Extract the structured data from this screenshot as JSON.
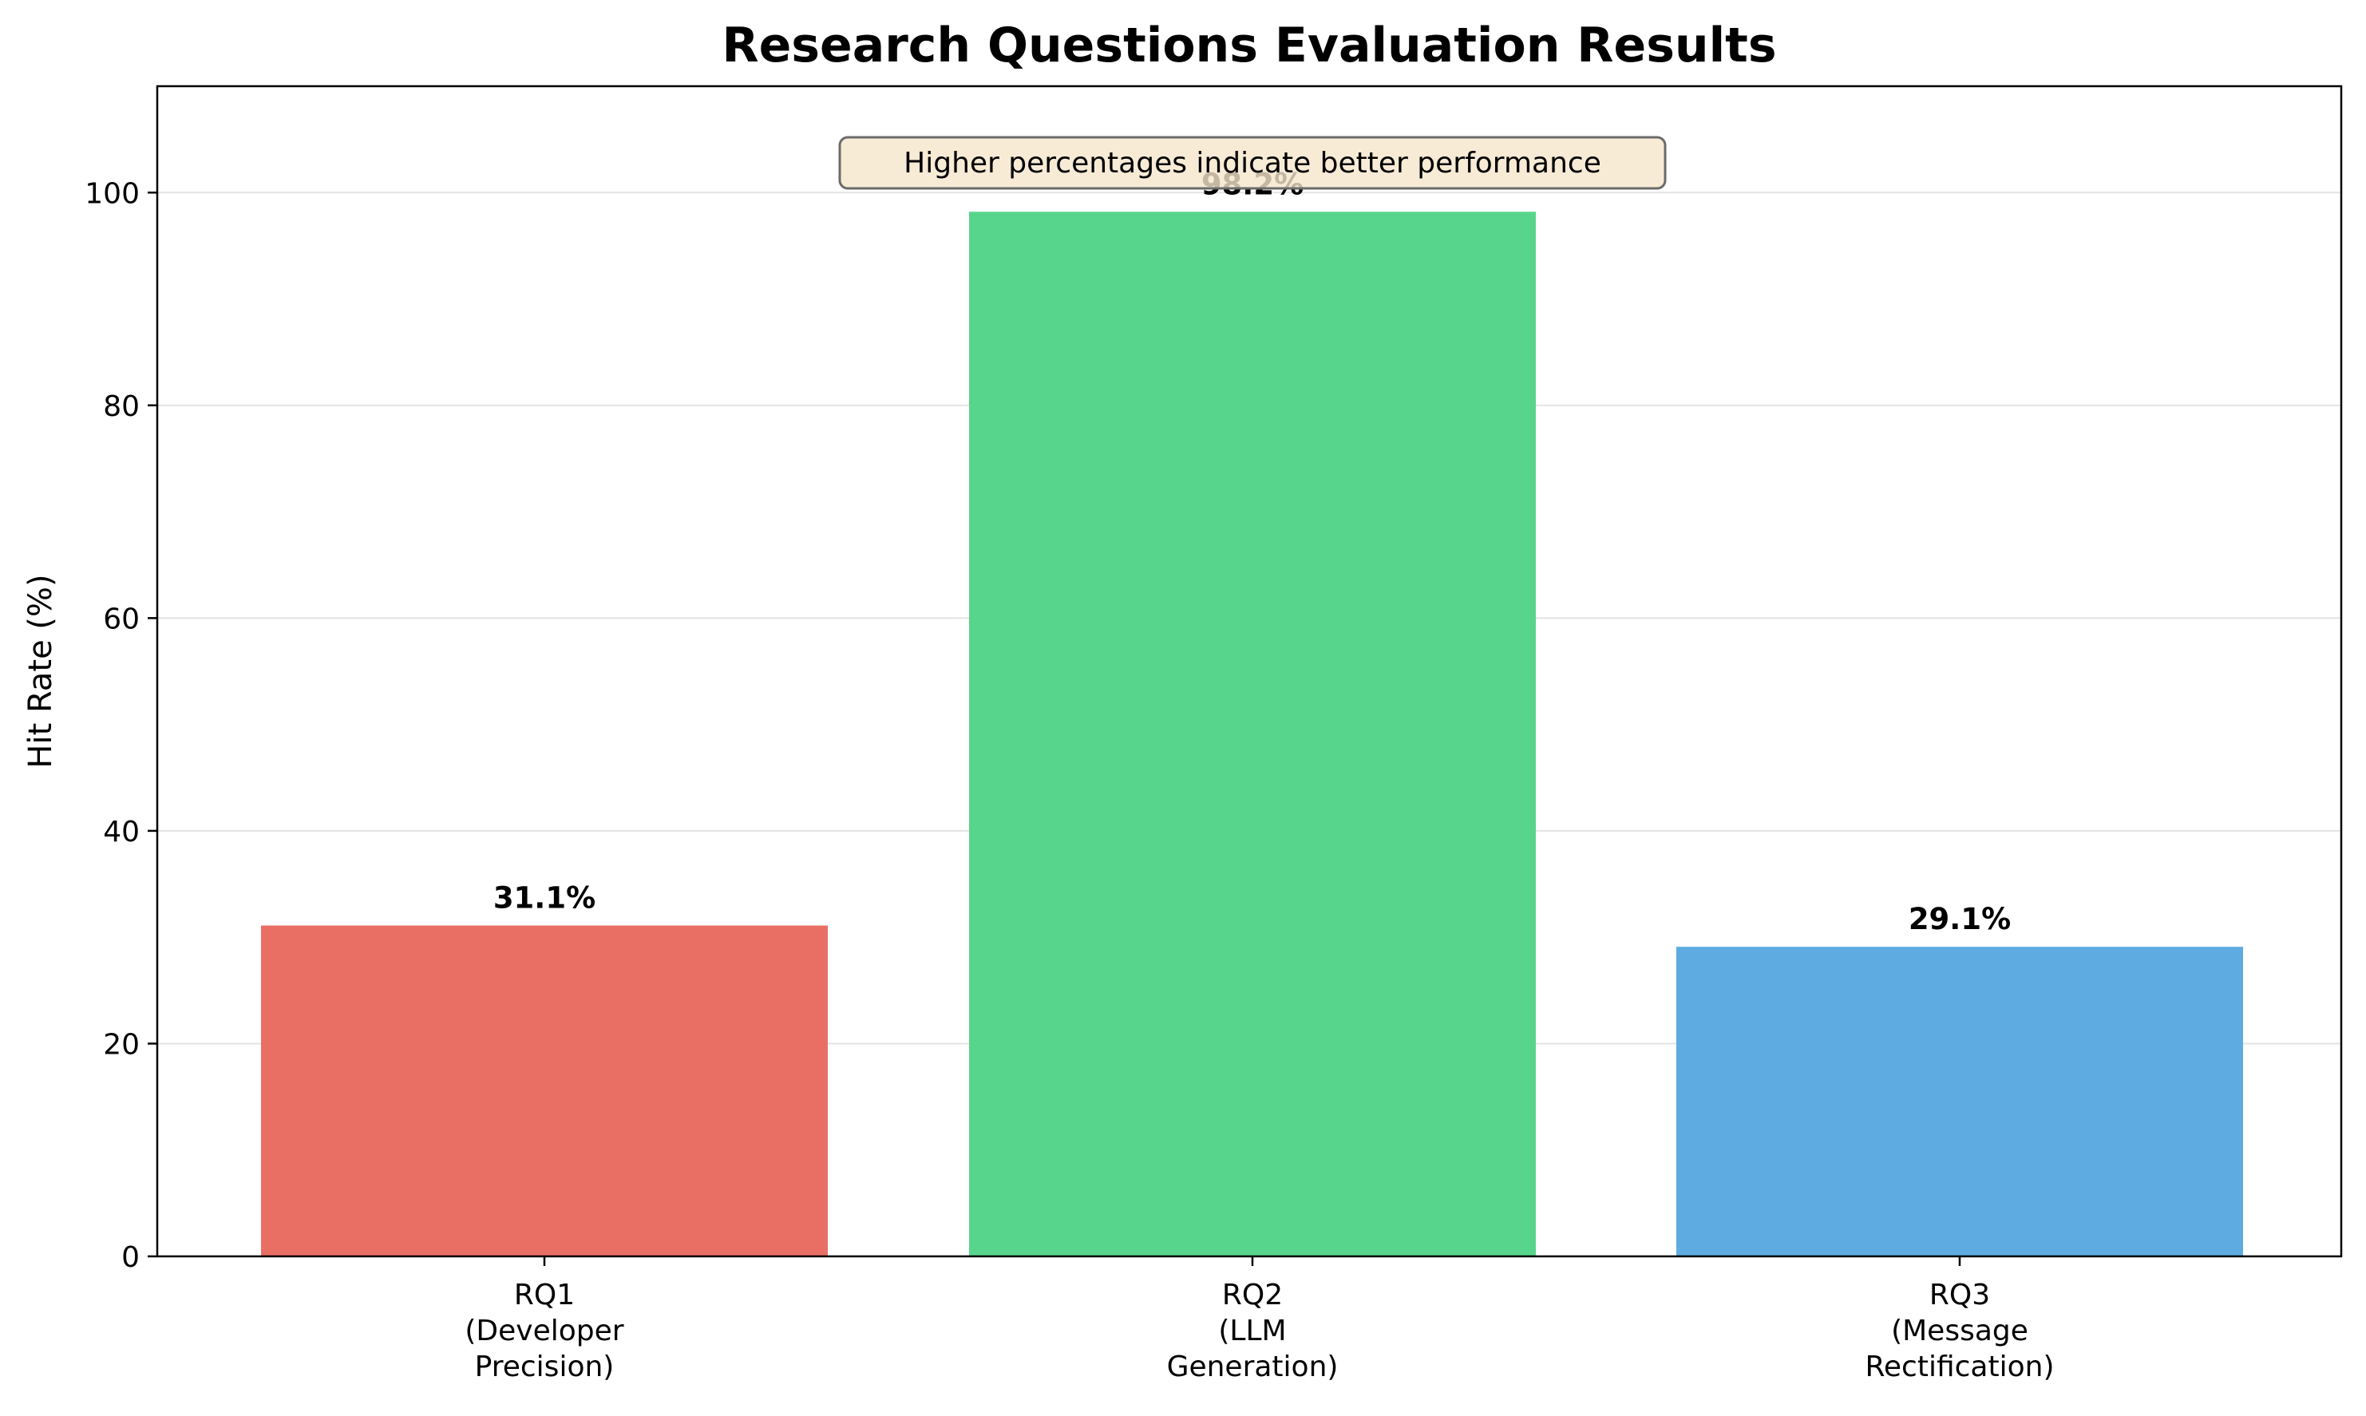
{
  "chart_data": {
    "type": "bar",
    "title": "Research Questions Evaluation Results",
    "xlabel": "",
    "ylabel": "Hit Rate (%)",
    "ylim": [
      0,
      110
    ],
    "yticks": [
      0,
      20,
      40,
      60,
      80,
      100
    ],
    "grid": "y",
    "categories": [
      [
        "RQ1",
        "(Developer",
        "Precision)"
      ],
      [
        "RQ2",
        "(LLM",
        "Generation)"
      ],
      [
        "RQ3",
        "(Message",
        "Rectification)"
      ]
    ],
    "values": [
      31.1,
      98.2,
      29.1
    ],
    "value_labels": [
      "31.1%",
      "98.2%",
      "29.1%"
    ],
    "colors": [
      "#e96f64",
      "#58d58c",
      "#5dabe0"
    ],
    "annotation": "Higher percentages indicate better performance"
  }
}
